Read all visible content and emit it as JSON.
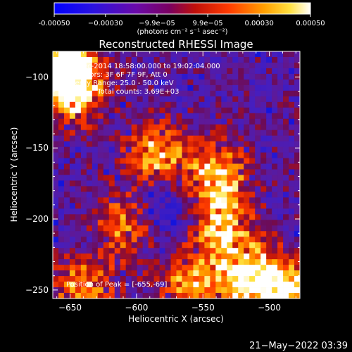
{
  "colorbar": {
    "min": -0.0005,
    "max": 0.0005,
    "ticks": [
      {
        "value": -0.0005,
        "label": "-0.00050"
      },
      {
        "value": -0.0003,
        "label": "−0.00030"
      },
      {
        "value": -9.9e-05,
        "label": "−9.9e−05"
      },
      {
        "value": 9.9e-05,
        "label": "9.9e−05"
      },
      {
        "value": 0.0003,
        "label": "0.00030"
      },
      {
        "value": 0.0005,
        "label": "0.00050"
      }
    ],
    "units": "(photons cm⁻² s⁻¹ asec⁻²)",
    "colormap": "rhessi-3-color: blue → purple → red → orange → yellow → white"
  },
  "chart_data": {
    "type": "heatmap",
    "title": "Reconstructed RHESSI Image",
    "xlabel": "Heliocentric X (arcsec)",
    "ylabel": "Heliocentric Y (arcsec)",
    "xlim": [
      -663,
      -477
    ],
    "ylim": [
      -256,
      -82
    ],
    "x_ticks": [
      {
        "value": -650,
        "label": "−650"
      },
      {
        "value": -600,
        "label": "−600"
      },
      {
        "value": -550,
        "label": "−550"
      },
      {
        "value": -500,
        "label": "−500"
      }
    ],
    "y_ticks": [
      {
        "value": -100,
        "label": "−100"
      },
      {
        "value": -150,
        "label": "−150"
      },
      {
        "value": -200,
        "label": "−200"
      },
      {
        "value": -250,
        "label": "−250"
      }
    ],
    "grid": false,
    "annotations": [
      "19-Dec-2014 18:58:00.000 to 19:02:04.000",
      "Detectors: 3F 6F 7F 9F, Att 0",
      "Energy Range: 25.0 - 50.0 keV",
      "Clean     Total counts: 3.69E+03"
    ],
    "peak_label": "Position of Peak = [-655,-69]",
    "peak": {
      "x": -655,
      "y": -69
    },
    "hot_regions": [
      {
        "x": -655,
        "y": -90,
        "level": 1.0
      },
      {
        "x": -648,
        "y": -110,
        "level": 0.9
      },
      {
        "x": -585,
        "y": -155,
        "level": 0.8
      },
      {
        "x": -540,
        "y": -170,
        "level": 0.85
      },
      {
        "x": -535,
        "y": -205,
        "level": 0.75
      },
      {
        "x": -520,
        "y": -240,
        "level": 0.9
      },
      {
        "x": -490,
        "y": -250,
        "level": 0.95
      },
      {
        "x": -560,
        "y": -245,
        "level": 0.7
      },
      {
        "x": -640,
        "y": -250,
        "level": 0.7
      },
      {
        "x": -610,
        "y": -205,
        "level": 0.6
      }
    ]
  },
  "timestamp": "21−May−2022 03:39"
}
